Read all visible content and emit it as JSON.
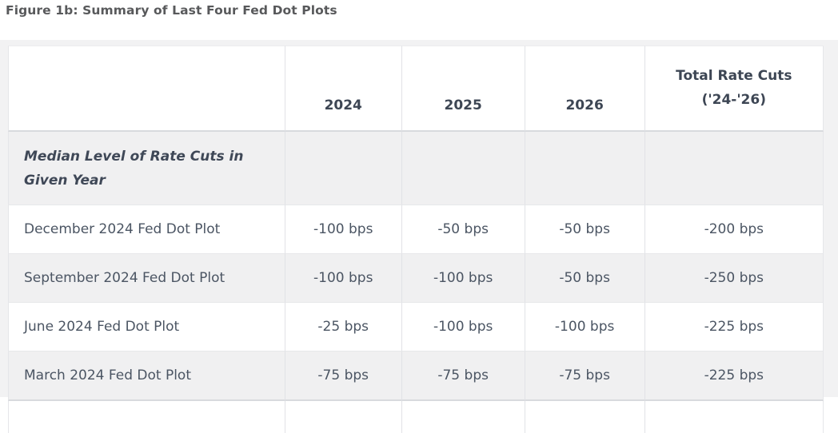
{
  "title": "Figure 1b: Summary of Last Four Fed Dot Plots",
  "chart_data": {
    "type": "table",
    "title": "Figure 1b: Summary of Last Four Fed Dot Plots",
    "columns": [
      "",
      "2024",
      "2025",
      "2026",
      "Total Rate Cuts ('24-'26)"
    ],
    "section_label": "Median Level of Rate Cuts in Given Year",
    "rows": [
      {
        "label": "December 2024 Fed Dot Plot",
        "values": [
          "-100 bps",
          "-50 bps",
          "-50 bps",
          "-200 bps"
        ]
      },
      {
        "label": "September 2024 Fed Dot Plot",
        "values": [
          "-100 bps",
          "-100 bps",
          "-50 bps",
          "-250 bps"
        ]
      },
      {
        "label": "June 2024 Fed Dot Plot",
        "values": [
          "-25 bps",
          "-100 bps",
          "-100 bps",
          "-225 bps"
        ]
      },
      {
        "label": "March 2024 Fed Dot Plot",
        "values": [
          "-75 bps",
          "-75 bps",
          "-75 bps",
          "-225 bps"
        ]
      }
    ],
    "units": "bps"
  },
  "ui": {
    "total_header_line1": "Total Rate Cuts",
    "total_header_line2": "('24-'26)",
    "colors": {
      "page_background": "#f2f2f3",
      "table_background": "#ffffff",
      "stripe_row": "#f0f0f1",
      "header_text": "#3d4654",
      "body_text": "#4b5563",
      "title_text": "#58595b",
      "divider": "#e1e2e6",
      "strong_divider": "#d8dade"
    }
  }
}
